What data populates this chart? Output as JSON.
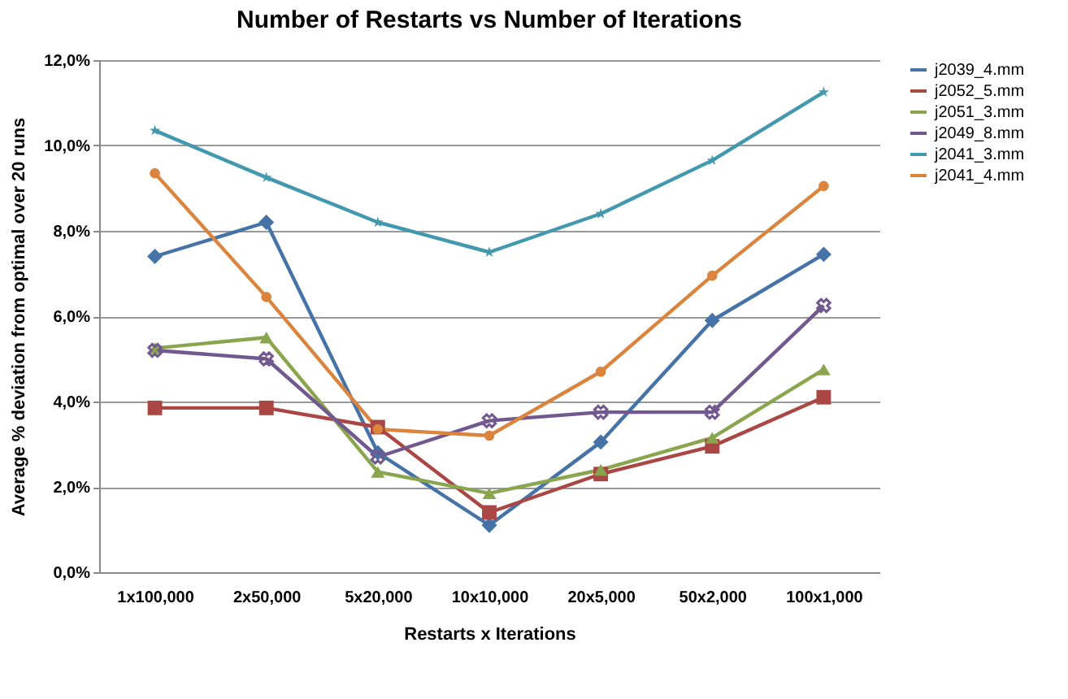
{
  "chart_data": {
    "type": "line",
    "title": "Number of Restarts vs Number of Iterations",
    "xlabel": "Restarts x Iterations",
    "ylabel": "Average % deviation from optimal over 20 runs",
    "categories": [
      "1x100,000",
      "2x50,000",
      "5x20,000",
      "10x10,000",
      "20x5,000",
      "50x2,000",
      "100x1,000"
    ],
    "series": [
      {
        "name": "j2039_4.mm",
        "color": "#4572a7",
        "marker": "diamond",
        "values": [
          7.4,
          8.2,
          2.8,
          1.1,
          3.05,
          5.9,
          7.45
        ]
      },
      {
        "name": "j2052_5.mm",
        "color": "#aa4643",
        "marker": "square",
        "values": [
          3.85,
          3.85,
          3.4,
          1.4,
          2.3,
          2.95,
          4.1
        ]
      },
      {
        "name": "j2051_3.mm",
        "color": "#89a54e",
        "marker": "triangle",
        "values": [
          5.25,
          5.5,
          2.35,
          1.85,
          2.4,
          3.15,
          4.75
        ]
      },
      {
        "name": "j2049_8.mm",
        "color": "#71588f",
        "marker": "cross",
        "values": [
          5.2,
          5.0,
          2.7,
          3.55,
          3.75,
          3.75,
          6.25
        ]
      },
      {
        "name": "j2041_3.mm",
        "color": "#4198af",
        "marker": "star",
        "values": [
          10.35,
          9.25,
          8.2,
          7.5,
          8.4,
          9.65,
          11.25
        ]
      },
      {
        "name": "j2041_4.mm",
        "color": "#db843d",
        "marker": "circle",
        "values": [
          9.35,
          6.45,
          3.35,
          3.2,
          4.7,
          6.95,
          9.05
        ]
      }
    ],
    "ylim": [
      0,
      12
    ],
    "yticks": [
      {
        "value": 0,
        "label": "0,0%"
      },
      {
        "value": 2,
        "label": "2,0%"
      },
      {
        "value": 4,
        "label": "4,0%"
      },
      {
        "value": 6,
        "label": "6,0%"
      },
      {
        "value": 8,
        "label": "8,0%"
      },
      {
        "value": 10,
        "label": "10,0%"
      },
      {
        "value": 12,
        "label": "12,0%"
      }
    ],
    "grid": "y",
    "legend": "right",
    "line_style": "solid"
  }
}
